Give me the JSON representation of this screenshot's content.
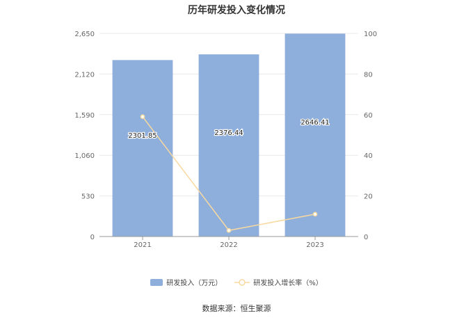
{
  "title": "历年研发投入变化情况",
  "source": "数据来源：恒生聚源",
  "colors": {
    "bar": "#8eaedb",
    "line": "#f8d9a0",
    "grid": "#e8e8e8",
    "axis": "#666666"
  },
  "chart_data": {
    "type": "bar",
    "categories": [
      "2021",
      "2022",
      "2023"
    ],
    "series": [
      {
        "name": "研发投入（万元）",
        "type": "bar",
        "axis": "left",
        "values": [
          2301.85,
          2376.44,
          2646.41
        ],
        "labels": [
          "2301.85",
          "2376.44",
          "2646.41"
        ]
      },
      {
        "name": "研发投入增长率（%）",
        "type": "line",
        "axis": "right",
        "values": [
          59,
          3,
          11
        ]
      }
    ],
    "y_left": {
      "min": 0,
      "max": 2650,
      "ticks": [
        0,
        530,
        1060,
        1590,
        2120,
        2650
      ],
      "tick_labels": [
        "0",
        "530",
        "1,060",
        "1,590",
        "2,120",
        "2,650"
      ]
    },
    "y_right": {
      "min": 0,
      "max": 100,
      "ticks": [
        0,
        20,
        40,
        60,
        80,
        100
      ],
      "tick_labels": [
        "0",
        "20",
        "40",
        "60",
        "80",
        "100"
      ]
    },
    "grid": true,
    "legend_position": "bottom"
  }
}
